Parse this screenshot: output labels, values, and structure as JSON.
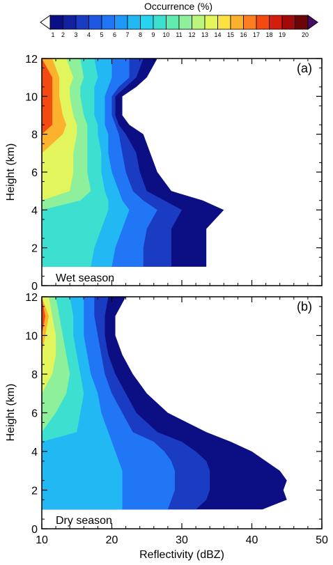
{
  "colorbar": {
    "title": "Occurrence (%)",
    "levels": [
      "1",
      "2",
      "3",
      "4",
      "5",
      "6",
      "7",
      "8",
      "9",
      "10",
      "11",
      "12",
      "13",
      "14",
      "15",
      "16",
      "17",
      "18",
      "19",
      "20"
    ],
    "colors": [
      "#0c0e84",
      "#12229e",
      "#1a3cc2",
      "#1f58e0",
      "#2176f5",
      "#1f98f8",
      "#22b8f4",
      "#28d3ee",
      "#3de0d0",
      "#62eab0",
      "#8ef09a",
      "#bcf57b",
      "#e2f55c",
      "#fbe143",
      "#fdb22e",
      "#fb7f1e",
      "#f34a12",
      "#d41d0d",
      "#a00a0a",
      "#6a0606"
    ],
    "over_color": "#4a0a6a",
    "under_color": "#ffffff"
  },
  "chart_data": [
    {
      "type": "heatmap",
      "panel_label": "(a)",
      "season_label": "Wet season",
      "xlabel": "",
      "ylabel": "Height (km)",
      "xlim": [
        10,
        50
      ],
      "ylim": [
        0,
        12
      ],
      "xticks": [
        "10",
        "20",
        "30",
        "40",
        "50"
      ],
      "yticks": [
        "0",
        "2",
        "4",
        "6",
        "8",
        "10",
        "12"
      ],
      "heights_km": [
        1,
        2,
        3,
        4,
        4.5,
        5,
        6,
        7,
        8,
        8.5,
        9,
        10,
        10.5,
        11,
        12
      ],
      "contour_x_dbz": {
        "1": [
          33.5,
          33.5,
          33.5,
          36,
          33,
          28.5,
          26.5,
          25.5,
          24.5,
          22.5,
          21.5,
          21.5,
          23.5,
          25,
          26.5
        ],
        "3": [
          28.5,
          28.5,
          28.5,
          30,
          27.5,
          25,
          24,
          23.5,
          22,
          21,
          20.5,
          20.5,
          22,
          23.5,
          24.5
        ],
        "5": [
          24.5,
          24.5,
          25,
          26.5,
          24.5,
          23,
          22,
          21.5,
          21,
          20.5,
          20,
          20,
          21,
          22.5,
          22.5
        ],
        "7": [
          20,
          20.5,
          21.5,
          22.5,
          21.5,
          21,
          20,
          19.5,
          19.5,
          19,
          19,
          19,
          19.5,
          20,
          20
        ],
        "9": [
          17,
          17.5,
          18.5,
          19.5,
          19.5,
          19,
          18.5,
          18.5,
          18,
          18,
          17.5,
          17.5,
          17.5,
          18,
          17.5
        ],
        "11": [
          10,
          10,
          10,
          10,
          15.5,
          17,
          16.5,
          16.5,
          16.5,
          16.5,
          16,
          15.5,
          15.5,
          16,
          15.5
        ],
        "13": [
          10,
          10,
          10,
          10,
          10,
          14,
          14.5,
          14.5,
          15,
          15,
          14.5,
          14,
          14,
          14.5,
          13.5
        ],
        "15": [
          10,
          10,
          10,
          10,
          10,
          10,
          10,
          10,
          13,
          13.5,
          13,
          12.5,
          12.5,
          12.5,
          11.5
        ],
        "17": [
          10,
          10,
          10,
          10,
          10,
          10,
          10,
          10,
          10,
          11.5,
          11.5,
          11.5,
          11.5,
          11.5,
          10
        ]
      }
    },
    {
      "type": "heatmap",
      "panel_label": "(b)",
      "season_label": "Dry season",
      "xlabel": "Reflectivity (dBZ)",
      "ylabel": "Height (km)",
      "xlim": [
        10,
        50
      ],
      "ylim": [
        0,
        12
      ],
      "xticks": [
        "10",
        "20",
        "30",
        "40",
        "50"
      ],
      "yticks": [
        "0",
        "2",
        "4",
        "6",
        "8",
        "10",
        "12"
      ],
      "heights_km": [
        1,
        1.5,
        2,
        2.5,
        3,
        3.5,
        4,
        4.5,
        5,
        6,
        7,
        8,
        9,
        10,
        11,
        12
      ],
      "contour_x_dbz": {
        "1": [
          41.5,
          45,
          44.5,
          45,
          44,
          42,
          40,
          37,
          33.5,
          28,
          25,
          23,
          21.5,
          20.5,
          20.5,
          22
        ],
        "3": [
          32,
          33.5,
          34,
          34,
          34,
          33.5,
          32,
          30,
          26.5,
          23.5,
          22,
          20.5,
          19.5,
          19,
          19,
          19.5
        ],
        "5": [
          28,
          28.5,
          29,
          29,
          29,
          28.5,
          27.5,
          26,
          23,
          21.5,
          20,
          19,
          18.5,
          18,
          17.5,
          17.5
        ],
        "7": [
          21.5,
          21.5,
          21.5,
          21.5,
          21.5,
          21,
          20.5,
          20,
          19.5,
          18.5,
          18,
          17,
          16.5,
          16,
          16,
          16
        ],
        "9": [
          10,
          10,
          10,
          10,
          10,
          10,
          10,
          10,
          15,
          15.5,
          16,
          15.5,
          15,
          14.5,
          14.5,
          14
        ],
        "11": [
          10,
          10,
          10,
          10,
          10,
          10,
          10,
          10,
          10,
          12,
          13.5,
          14,
          13.5,
          13,
          12.5,
          12
        ],
        "13": [
          10,
          10,
          10,
          10,
          10,
          10,
          10,
          10,
          10,
          10,
          10,
          11.5,
          12,
          12,
          11.5,
          11
        ],
        "15": [
          10,
          10,
          10,
          10,
          10,
          10,
          10,
          10,
          10,
          10,
          10,
          10,
          10,
          10.5,
          11,
          10
        ],
        "17": [
          10,
          10,
          10,
          10,
          10,
          10,
          10,
          10,
          10,
          10,
          10,
          10,
          10,
          10,
          10.5,
          10
        ]
      }
    }
  ]
}
